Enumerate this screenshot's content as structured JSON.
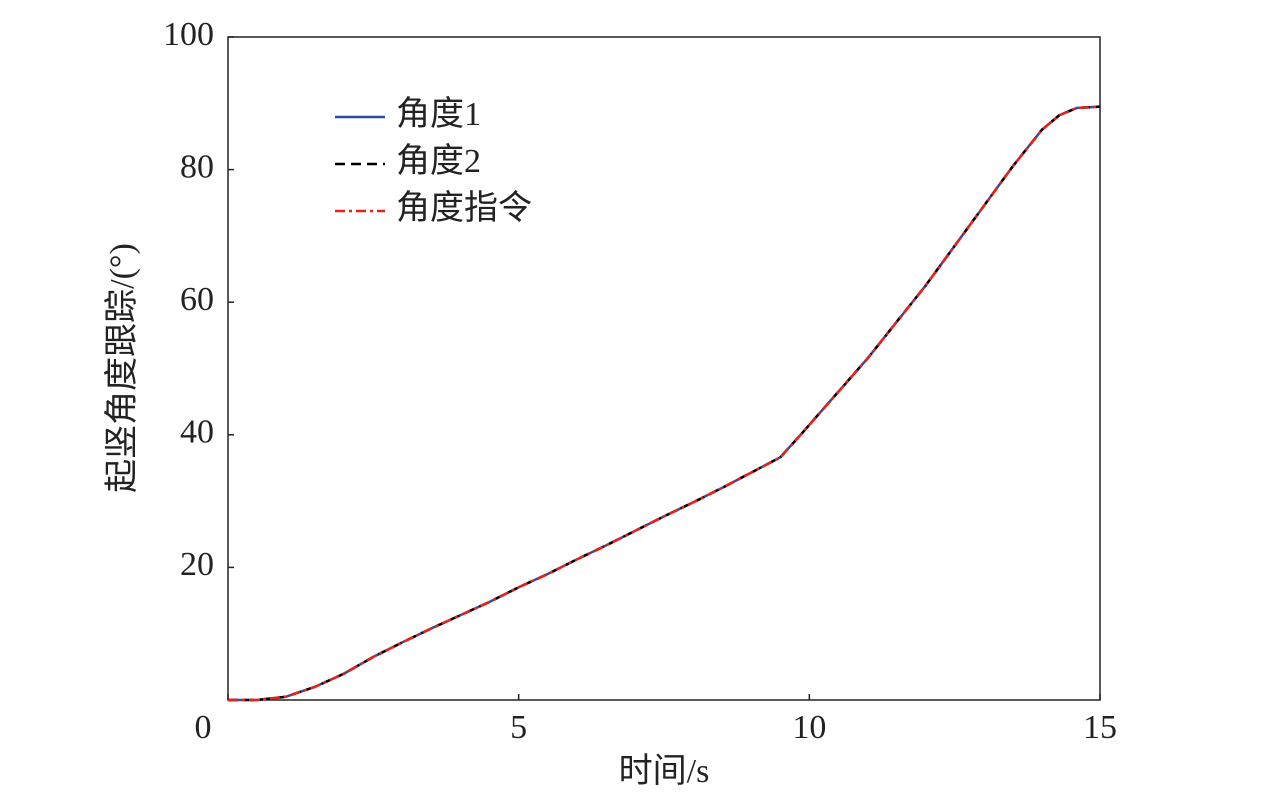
{
  "chart_data": {
    "type": "line",
    "xlabel": "时间/s",
    "ylabel": "起竖角度跟踪/(°)",
    "x": [
      0,
      0.5,
      1,
      1.5,
      2,
      2.5,
      3,
      3.5,
      4,
      4.5,
      5,
      5.5,
      6,
      6.5,
      7,
      7.5,
      8,
      8.5,
      9,
      9.5,
      9.85,
      10.5,
      11,
      11.5,
      12,
      12.5,
      13,
      13.5,
      14,
      14.3,
      14.6,
      15
    ],
    "series": [
      {
        "name": "角度1",
        "color": "#2a4fa0",
        "dash": "solid",
        "values": [
          0,
          0,
          0.5,
          2,
          4,
          6.5,
          8.7,
          10.8,
          12.8,
          14.8,
          17,
          19,
          21.2,
          23.3,
          25.5,
          27.7,
          29.8,
          32,
          34.3,
          36.6,
          40,
          46.5,
          51.5,
          57,
          62.5,
          68.5,
          74.5,
          80.5,
          86,
          88.2,
          89.3,
          89.5
        ]
      },
      {
        "name": "角度2",
        "color": "#000000",
        "dash": "dashed",
        "values": [
          0,
          0,
          0.5,
          2,
          4,
          6.5,
          8.7,
          10.8,
          12.8,
          14.8,
          17,
          19,
          21.2,
          23.3,
          25.5,
          27.7,
          29.8,
          32,
          34.3,
          36.6,
          40,
          46.5,
          51.5,
          57,
          62.5,
          68.5,
          74.5,
          80.5,
          86,
          88.2,
          89.3,
          89.5
        ]
      },
      {
        "name": "角度指令",
        "color": "#e8211c",
        "dash": "dashdot",
        "values": [
          0,
          0,
          0.5,
          2,
          4,
          6.5,
          8.7,
          10.8,
          12.8,
          14.8,
          17,
          19,
          21.2,
          23.3,
          25.5,
          27.7,
          29.8,
          32,
          34.3,
          36.6,
          40,
          46.5,
          51.5,
          57,
          62.5,
          68.5,
          74.5,
          80.5,
          86,
          88.2,
          89.3,
          89.5
        ]
      }
    ],
    "xlim": [
      0,
      15
    ],
    "xticks": [
      0,
      5,
      10,
      15
    ],
    "ylim": [
      0,
      100
    ],
    "yticks": [
      20,
      40,
      60,
      80,
      100
    ],
    "grid": false,
    "legend": "upper left"
  }
}
